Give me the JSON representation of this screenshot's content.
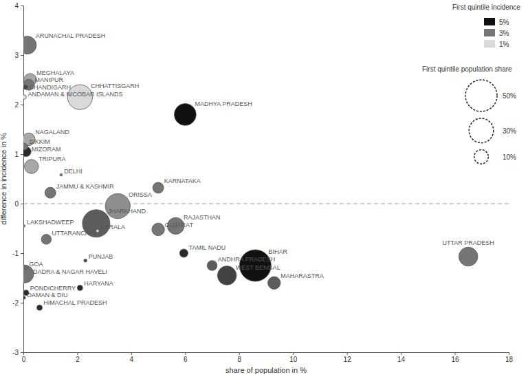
{
  "chart_data": {
    "type": "scatter",
    "marker": "bubble",
    "x_label": "share of population in %",
    "y_label": "difference in incidence in %",
    "xlim": [
      0,
      18
    ],
    "xticks": [
      0,
      2,
      4,
      6,
      8,
      10,
      12,
      14,
      16,
      18
    ],
    "ylim": [
      -3,
      4
    ],
    "yticks": [
      -3,
      -2,
      -1,
      0,
      1,
      2,
      3,
      4
    ],
    "grid": false,
    "reference_line": {
      "y": 0,
      "line_style": "dashed"
    },
    "labels": [
      "ARUNACHAL PRADESH",
      "MEGHALAYA",
      "MANIPUR",
      "CHANDIGARH",
      "CHHATTISGARH",
      "ANDAMAN & NICOBAR ISLANDS",
      "MADHYA PRADESH",
      "NAGALAND",
      "SIKKIM",
      "MIZORAM",
      "TRIPURA",
      "DELHI",
      "JAMMU & KASHMIR",
      "KARNATAKA",
      "ORISSA",
      "JHARKHAND",
      "KERALA",
      "GUJARAT",
      "RAJASTHAN",
      "LAKSHADWEEP",
      "UTTARANCHAL",
      "TAMIL NADU",
      "ANDHRA PRADESH",
      "BIHAR",
      "WEST BENGAL",
      "MAHARASTRA",
      "UTTAR PRADESH",
      "GOA",
      "DADRA & NAGAR HAVELI",
      "PUNJAB",
      "PONDICHERRY",
      "HARYANA",
      "DAMAN & DIU",
      "HIMACHAL PRADESH"
    ],
    "x": [
      0.15,
      0.25,
      0.2,
      0.08,
      2.1,
      0.03,
      6.0,
      0.2,
      0.05,
      0.1,
      0.3,
      1.4,
      1.0,
      5.0,
      3.5,
      2.7,
      2.75,
      5.0,
      5.65,
      0.02,
      0.85,
      5.95,
      7.0,
      8.6,
      7.55,
      9.3,
      16.5,
      0.1,
      0.05,
      2.3,
      0.1,
      2.1,
      0.02,
      0.6
    ],
    "y": [
      3.2,
      2.5,
      2.4,
      2.35,
      2.15,
      2.15,
      1.8,
      1.3,
      1.15,
      1.05,
      0.75,
      0.58,
      0.22,
      0.32,
      -0.05,
      -0.4,
      -0.55,
      -0.52,
      -0.45,
      -0.45,
      -0.72,
      -1.0,
      -1.25,
      -1.25,
      -1.45,
      -1.6,
      -1.07,
      -1.3,
      -1.42,
      -1.15,
      -1.8,
      -1.7,
      -1.9,
      -2.1
    ],
    "sizes": [
      16,
      8,
      6,
      1,
      31,
      1,
      24,
      8,
      2,
      5,
      10,
      0.3,
      6,
      6,
      31,
      38,
      0.5,
      8,
      14,
      0.3,
      5,
      3.5,
      5,
      50,
      18,
      8,
      18,
      0.5,
      16,
      0.5,
      1.5,
      1.5,
      0.5,
      1.5
    ],
    "incidence": [
      3,
      2,
      3,
      4,
      1,
      1,
      5,
      2,
      3,
      4.5,
      2,
      3,
      3,
      3,
      2.5,
      3.5,
      1,
      3,
      3,
      3,
      3,
      4.5,
      3.5,
      5,
      4,
      3.5,
      3,
      3,
      3,
      4,
      4.5,
      4.5,
      4.5,
      4.5
    ],
    "color_legend": {
      "title": "First quintile incidence",
      "values": [
        5,
        3,
        1
      ],
      "labels": [
        "5%",
        "3%",
        "1%"
      ]
    },
    "size_legend": {
      "title": "First quintile population share",
      "values": [
        50,
        30,
        10
      ],
      "labels": [
        "50%",
        "30%",
        "10%"
      ]
    }
  }
}
